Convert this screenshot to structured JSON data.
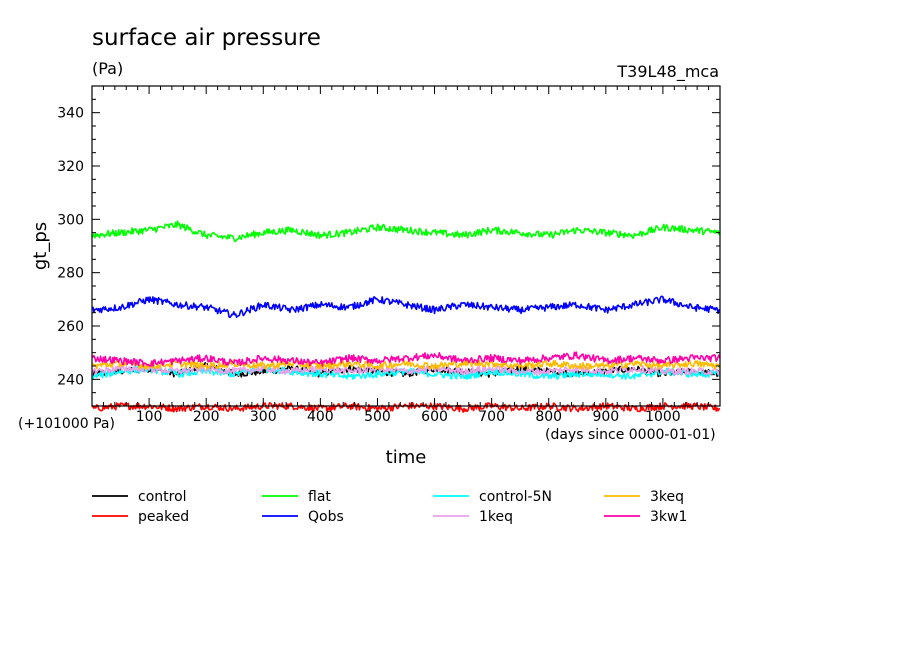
{
  "chart_data": {
    "type": "line",
    "title": "surface air pressure",
    "units": "(Pa)",
    "run_label": "T39L48_mca",
    "ylabel": "gt_ps",
    "xlabel": "time",
    "x_offset_label": "(+101000 Pa)",
    "x_units_label": "(days since 0000-01-01)",
    "xlim": [
      0,
      1100
    ],
    "ylim": [
      230,
      350
    ],
    "x_ticks": [
      100,
      200,
      300,
      400,
      500,
      600,
      700,
      800,
      900,
      1000
    ],
    "y_ticks": [
      240,
      260,
      280,
      300,
      320,
      340
    ],
    "x": [
      0,
      50,
      100,
      150,
      200,
      250,
      300,
      350,
      400,
      450,
      500,
      550,
      600,
      650,
      700,
      750,
      800,
      850,
      900,
      950,
      1000,
      1050,
      1100
    ],
    "series": [
      {
        "name": "control",
        "color": "#000000",
        "values": [
          242,
          243,
          244,
          242,
          245,
          242,
          243,
          244,
          242,
          244,
          243,
          242,
          244,
          243,
          242,
          244,
          243,
          242,
          243,
          244,
          242,
          243,
          242
        ]
      },
      {
        "name": "peaked",
        "color": "#ff0000",
        "values": [
          229,
          230,
          230,
          229,
          230,
          229,
          230,
          230,
          229,
          230,
          229,
          230,
          230,
          229,
          230,
          229,
          230,
          229,
          230,
          229,
          230,
          230,
          229
        ]
      },
      {
        "name": "flat",
        "color": "#00ff00",
        "values": [
          294,
          295,
          296,
          298,
          294,
          293,
          295,
          296,
          294,
          295,
          297,
          296,
          295,
          294,
          296,
          295,
          294,
          296,
          295,
          294,
          297,
          296,
          295
        ]
      },
      {
        "name": "Qobs",
        "color": "#0000ff",
        "values": [
          266,
          267,
          270,
          268,
          267,
          264,
          268,
          266,
          268,
          267,
          270,
          268,
          266,
          268,
          267,
          266,
          267,
          268,
          266,
          268,
          270,
          267,
          266
        ]
      },
      {
        "name": "control-5N",
        "color": "#00ffff",
        "values": [
          241,
          243,
          244,
          242,
          243,
          242,
          244,
          243,
          242,
          241,
          242,
          243,
          242,
          241,
          243,
          242,
          241,
          242,
          242,
          241,
          243,
          242,
          242
        ]
      },
      {
        "name": "1keq",
        "color": "#e8a0e8",
        "values": [
          243,
          244,
          244,
          243,
          244,
          243,
          244,
          243,
          244,
          243,
          244,
          243,
          244,
          243,
          244,
          243,
          243,
          244,
          243,
          244,
          243,
          243,
          243
        ]
      },
      {
        "name": "3keq",
        "color": "#ffbb00",
        "values": [
          245,
          246,
          245,
          246,
          245,
          246,
          245,
          246,
          245,
          246,
          245,
          246,
          245,
          246,
          246,
          245,
          246,
          245,
          245,
          246,
          245,
          246,
          245
        ]
      },
      {
        "name": "3kw1",
        "color": "#ff00aa",
        "values": [
          248,
          247,
          246,
          247,
          248,
          246,
          248,
          247,
          246,
          248,
          247,
          248,
          249,
          247,
          248,
          247,
          248,
          249,
          247,
          248,
          247,
          248,
          248
        ]
      }
    ]
  }
}
